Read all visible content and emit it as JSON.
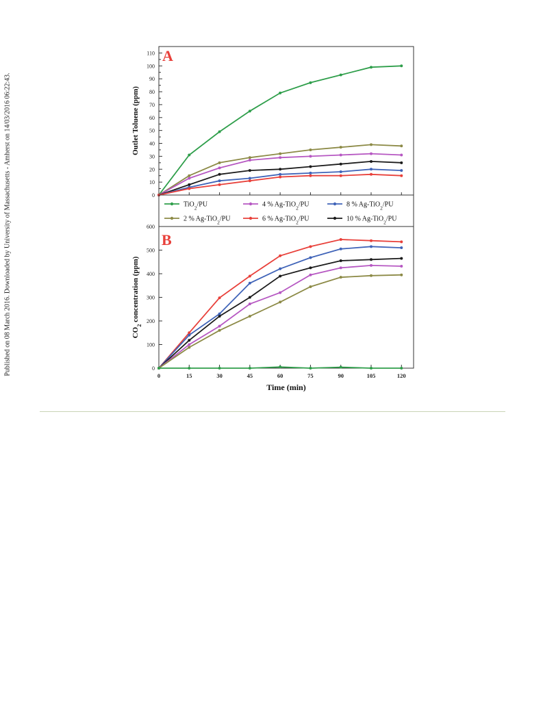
{
  "side_note": "Published on 08 March 2016. Downloaded by University of Massachusetts - Amherst on 14/03/2016 06:22:43.",
  "colors": {
    "TiO2/PU": "#2e9e4a",
    "2 % Ag-TiO2/PU": "#8c8a46",
    "4 % Ag-TiO2/PU": "#b657c2",
    "6 % Ag-TiO2/PU": "#e8403a",
    "8 % Ag-TiO2/PU": "#3f63b8",
    "10 % Ag-TiO2/PU": "#1b1b1b"
  },
  "chart_data": [
    {
      "type": "line",
      "panel": "A",
      "xlabel": "",
      "ylabel": "Outlet Toluene (ppm)",
      "ylim": [
        0,
        115
      ],
      "yticks": [
        0,
        10,
        20,
        30,
        40,
        50,
        60,
        70,
        80,
        90,
        100,
        110
      ],
      "x": [
        0,
        15,
        30,
        45,
        60,
        75,
        90,
        105,
        120
      ],
      "series": [
        {
          "name": "TiO2/PU",
          "values": [
            0,
            31,
            49,
            65,
            79,
            87,
            93,
            99,
            100
          ]
        },
        {
          "name": "2 % Ag-TiO2/PU",
          "values": [
            0,
            15,
            25,
            29,
            32,
            35,
            37,
            39,
            38
          ]
        },
        {
          "name": "4 % Ag-TiO2/PU",
          "values": [
            0,
            13,
            21,
            27,
            29,
            30,
            31,
            32,
            31
          ]
        },
        {
          "name": "10 % Ag-TiO2/PU",
          "values": [
            0,
            8,
            16,
            19,
            20,
            22,
            24,
            26,
            25
          ]
        },
        {
          "name": "8 % Ag-TiO2/PU",
          "values": [
            0,
            6,
            11,
            13,
            16,
            17,
            18,
            20,
            19
          ]
        },
        {
          "name": "6 % Ag-TiO2/PU",
          "values": [
            0,
            5,
            8,
            11,
            14,
            15,
            15,
            16,
            15
          ]
        }
      ],
      "legend": [
        [
          "TiO2/PU",
          "4 % Ag-TiO2/PU",
          "8 % Ag-TiO2/PU"
        ],
        [
          "2 % Ag-TiO2/PU",
          "6 % Ag-TiO2/PU",
          "10 % Ag-TiO2/PU"
        ]
      ]
    },
    {
      "type": "line",
      "panel": "B",
      "xlabel": "Time (min)",
      "ylabel": "CO2 concentration (ppm)",
      "ylim": [
        0,
        600
      ],
      "yticks": [
        0,
        100,
        200,
        300,
        400,
        500,
        600
      ],
      "xlim": [
        0,
        120
      ],
      "xticks": [
        0,
        15,
        30,
        45,
        60,
        75,
        90,
        105,
        120
      ],
      "x": [
        0,
        15,
        30,
        45,
        60,
        75,
        90,
        105,
        120
      ],
      "series": [
        {
          "name": "6 % Ag-TiO2/PU",
          "values": [
            0,
            150,
            298,
            390,
            476,
            515,
            545,
            540,
            535
          ]
        },
        {
          "name": "8 % Ag-TiO2/PU",
          "values": [
            0,
            140,
            230,
            360,
            421,
            468,
            505,
            515,
            510
          ]
        },
        {
          "name": "10 % Ag-TiO2/PU",
          "values": [
            0,
            118,
            220,
            300,
            390,
            425,
            455,
            460,
            465
          ]
        },
        {
          "name": "4 % Ag-TiO2/PU",
          "values": [
            0,
            100,
            178,
            272,
            320,
            395,
            425,
            435,
            432
          ]
        },
        {
          "name": "2 % Ag-TiO2/PU",
          "values": [
            0,
            88,
            160,
            220,
            280,
            345,
            385,
            392,
            395
          ]
        },
        {
          "name": "TiO2/PU",
          "values": [
            0,
            0,
            0,
            0,
            5,
            0,
            4,
            0,
            0
          ]
        }
      ]
    }
  ]
}
